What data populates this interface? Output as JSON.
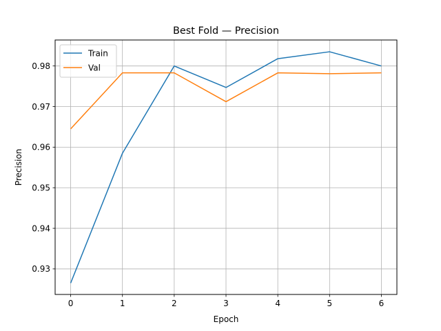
{
  "chart_data": {
    "type": "line",
    "title": "Best Fold — Precision",
    "xlabel": "Epoch",
    "ylabel": "Precision",
    "x": [
      0,
      1,
      2,
      3,
      4,
      5,
      6
    ],
    "xlim": [
      -0.3,
      6.3
    ],
    "ylim": [
      0.9237,
      0.9864
    ],
    "xticks": [
      "0",
      "1",
      "2",
      "3",
      "4",
      "5",
      "6"
    ],
    "yticks": [
      "0.93",
      "0.94",
      "0.95",
      "0.96",
      "0.97",
      "0.98"
    ],
    "grid": true,
    "legend_position": "top-left",
    "series": [
      {
        "name": "Train",
        "color": "#1f77b4",
        "values": [
          0.9265,
          0.9585,
          0.98,
          0.9747,
          0.9818,
          0.9835,
          0.98
        ]
      },
      {
        "name": "Val",
        "color": "#ff7f0e",
        "values": [
          0.9645,
          0.9783,
          0.9783,
          0.9712,
          0.9783,
          0.9781,
          0.9783
        ]
      }
    ]
  }
}
